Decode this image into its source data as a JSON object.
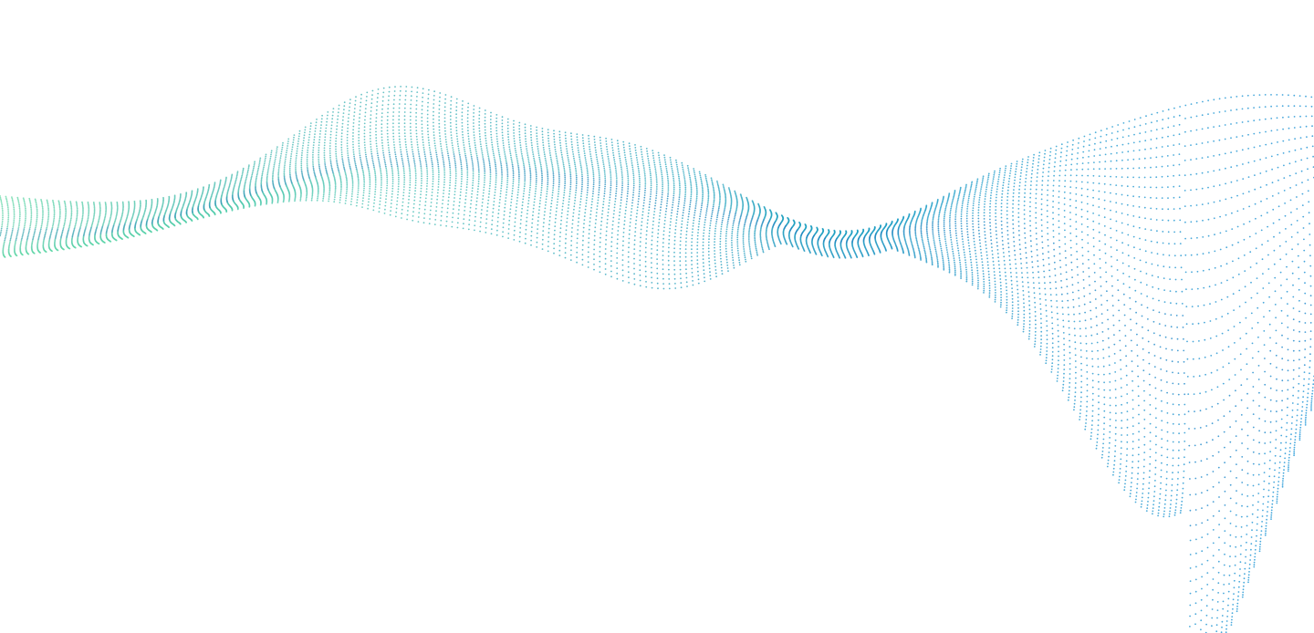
{
  "artwork": {
    "subject": "dotted-particle-wave",
    "background_color": "#ffffff",
    "gradient": {
      "start_color": "#6ee6a4",
      "mid_color": "#2aa8b8",
      "end_color": "#0a8fd6",
      "deep_color": "#0668b8"
    },
    "dot_opacity": 0.75
  }
}
